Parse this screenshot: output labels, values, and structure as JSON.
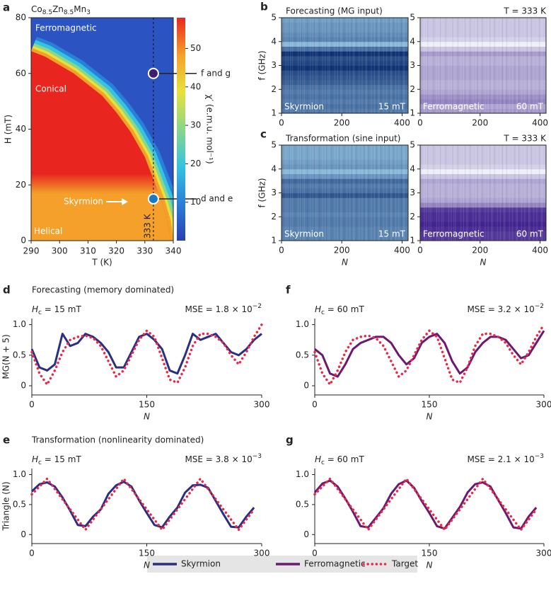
{
  "chart_data": [
    {
      "type": "phase_diagram",
      "panel": "a",
      "title_parts": [
        "Co",
        "8.5",
        "Zn",
        "8.5",
        "Mn",
        "3"
      ],
      "xlabel": "T (K)",
      "ylabel": "H (mT)",
      "xlim": [
        290,
        340
      ],
      "xticks": [
        290,
        300,
        310,
        320,
        330,
        340
      ],
      "ylim": [
        0,
        80
      ],
      "yticks": [
        0,
        20,
        40,
        60,
        80
      ],
      "boundary": {
        "x": [
          290,
          295,
          300,
          305,
          310,
          315,
          320,
          325,
          330,
          333,
          336,
          338,
          339
        ],
        "y": [
          68,
          66,
          63,
          60,
          56,
          52,
          46,
          39,
          30,
          22,
          14,
          7,
          0
        ]
      },
      "regions": [
        "Ferromagnetic",
        "Conical",
        "Skyrmion",
        "Helical"
      ],
      "colors": {
        "ferromagnetic": "#2b54c2",
        "conical": "#e8261f",
        "helical": "#f4a02a"
      },
      "colorbar_label": "χ′ (e.m.u. mol⁻¹)",
      "clim": [
        0,
        58
      ],
      "cticks": [
        10,
        20,
        30,
        40,
        50
      ],
      "colormap": [
        "#2a3fb0",
        "#2a7fd8",
        "#35c3e0",
        "#8ad68a",
        "#e6e23c",
        "#f5a02a",
        "#e8261f"
      ],
      "dashed_line": {
        "value": 333,
        "label": "333 K"
      },
      "markers": [
        {
          "x": 333,
          "y": 60,
          "color": "#3d1f6e",
          "label": "f and g"
        },
        {
          "x": 333,
          "y": 15,
          "color": "#1b78c2",
          "label": "d and e"
        }
      ]
    },
    {
      "type": "spectrogram",
      "panel": "b",
      "title": "Forecasting (MG input)",
      "ylabel": "f (GHz)",
      "xlim": [
        0,
        420
      ],
      "xticks": [
        0,
        200,
        400
      ],
      "ylim": [
        1,
        5
      ],
      "yticks": [
        1,
        2,
        3,
        4,
        5
      ],
      "f": [
        1.1,
        1.3,
        1.5,
        1.7,
        1.9,
        2.1,
        2.3,
        2.5,
        2.7,
        2.9,
        3.1,
        3.3,
        3.5,
        3.7,
        3.9,
        4.1,
        4.3,
        4.5,
        4.7,
        4.9
      ],
      "intensity": [
        0.55,
        0.6,
        0.55,
        0.6,
        0.55,
        0.6,
        0.7,
        0.75,
        0.8,
        0.95,
        0.85,
        0.8,
        0.95,
        0.6,
        0.2,
        0.5,
        0.45,
        0.4,
        0.4,
        0.35
      ],
      "colormap": [
        "#a9dcf4",
        "#0a2a6e"
      ],
      "phase": "Skyrmion",
      "field": "15 mT"
    },
    {
      "type": "spectrogram",
      "annotation": "T = 333 K",
      "xlim": [
        0,
        420
      ],
      "xticks": [
        0,
        200,
        400
      ],
      "ylim": [
        1,
        5
      ],
      "yticks": [
        1,
        2,
        3,
        4,
        5
      ],
      "f": [
        1.1,
        1.3,
        1.5,
        1.7,
        1.9,
        2.1,
        2.3,
        2.5,
        2.7,
        2.9,
        3.1,
        3.3,
        3.5,
        3.7,
        3.9,
        4.1,
        4.3,
        4.5,
        4.7,
        4.9
      ],
      "intensity": [
        0.4,
        0.35,
        0.5,
        0.45,
        0.35,
        0.3,
        0.3,
        0.35,
        0.35,
        0.35,
        0.3,
        0.3,
        0.4,
        0.2,
        0.0,
        0.15,
        0.2,
        0.2,
        0.2,
        0.2
      ],
      "colormap": [
        "#eef0f8",
        "#3a1a8a"
      ],
      "phase": "Ferromagnetic",
      "field": "60 mT"
    },
    {
      "type": "spectrogram",
      "panel": "c",
      "title": "Transformation (sine input)",
      "ylabel": "f (GHz)",
      "xlabel": "N",
      "xlim": [
        0,
        420
      ],
      "xticks": [
        0,
        200,
        400
      ],
      "ylim": [
        1,
        5
      ],
      "yticks": [
        1,
        2,
        3,
        4,
        5
      ],
      "f": [
        1.1,
        1.3,
        1.5,
        1.7,
        1.9,
        2.1,
        2.3,
        2.5,
        2.7,
        2.9,
        3.1,
        3.3,
        3.5,
        3.7,
        3.9,
        4.1,
        4.3,
        4.5,
        4.7,
        4.9
      ],
      "intensity": [
        0.5,
        0.5,
        0.5,
        0.55,
        0.55,
        0.5,
        0.55,
        0.55,
        0.55,
        0.75,
        0.6,
        0.55,
        0.65,
        0.4,
        0.2,
        0.4,
        0.35,
        0.3,
        0.3,
        0.3
      ],
      "colormap": [
        "#a9dcf4",
        "#0a2a6e"
      ],
      "phase": "Skyrmion",
      "field": "15 mT"
    },
    {
      "type": "spectrogram",
      "annotation": "T = 333 K",
      "xlabel": "N",
      "xlim": [
        0,
        420
      ],
      "xticks": [
        0,
        200,
        400
      ],
      "ylim": [
        1,
        5
      ],
      "yticks": [
        1,
        2,
        3,
        4,
        5
      ],
      "f": [
        1.1,
        1.3,
        1.5,
        1.7,
        1.9,
        2.1,
        2.3,
        2.5,
        2.7,
        2.9,
        3.1,
        3.3,
        3.5,
        3.7,
        3.9,
        4.1,
        4.3,
        4.5,
        4.7,
        4.9
      ],
      "intensity": [
        0.85,
        0.85,
        0.9,
        0.95,
        0.9,
        0.9,
        0.85,
        0.5,
        0.35,
        0.3,
        0.3,
        0.3,
        0.35,
        0.2,
        0.0,
        0.15,
        0.2,
        0.2,
        0.2,
        0.2
      ],
      "colormap": [
        "#eef0f8",
        "#3a1a8a"
      ],
      "phase": "Ferromagnetic",
      "field": "60 mT"
    },
    {
      "type": "line",
      "panel": "d",
      "title": "Forecasting (memory dominated)",
      "field_parts": [
        "H",
        "c",
        " = 15 mT"
      ],
      "mse_parts": [
        "MSE = 1.8 × 10",
        "−2"
      ],
      "ylabel": "MG(N + 5)",
      "xlabel": "N",
      "x": [
        0,
        10,
        20,
        30,
        40,
        50,
        60,
        70,
        80,
        90,
        100,
        110,
        120,
        130,
        140,
        150,
        160,
        170,
        180,
        190,
        200,
        210,
        220,
        230,
        240,
        250,
        260,
        270,
        280,
        290,
        300
      ],
      "xlim": [
        0,
        300
      ],
      "xticks": [
        0,
        150,
        300
      ],
      "ylim": [
        -0.15,
        1.1
      ],
      "yticks": [
        0,
        0.5,
        {
          "value": 1,
          "label": "1.0"
        }
      ],
      "series": [
        {
          "name": "Skyrmion",
          "color": "#2b2f80",
          "values": [
            0.6,
            0.3,
            0.25,
            0.35,
            0.85,
            0.65,
            0.7,
            0.85,
            0.8,
            0.7,
            0.55,
            0.3,
            0.3,
            0.55,
            0.8,
            0.85,
            0.75,
            0.6,
            0.25,
            0.2,
            0.5,
            0.85,
            0.75,
            0.8,
            0.85,
            0.7,
            0.55,
            0.5,
            0.6,
            0.75,
            0.85
          ]
        },
        {
          "name": "Target",
          "color": "#e8294a",
          "style": "dotted",
          "values": [
            0.55,
            0.2,
            0.02,
            0.25,
            0.55,
            0.75,
            0.8,
            0.82,
            0.78,
            0.65,
            0.4,
            0.15,
            0.25,
            0.5,
            0.75,
            0.9,
            0.8,
            0.45,
            0.1,
            0.05,
            0.3,
            0.65,
            0.85,
            0.85,
            0.8,
            0.7,
            0.5,
            0.35,
            0.55,
            0.8,
            1.0
          ]
        }
      ]
    },
    {
      "type": "line",
      "panel": "f",
      "field_parts": [
        "H",
        "c",
        " = 60 mT"
      ],
      "mse_parts": [
        "MSE = 3.2 × 10",
        "−2"
      ],
      "xlabel": "N",
      "x": [
        0,
        10,
        20,
        30,
        40,
        50,
        60,
        70,
        80,
        90,
        100,
        110,
        120,
        130,
        140,
        150,
        160,
        170,
        180,
        190,
        200,
        210,
        220,
        230,
        240,
        250,
        260,
        270,
        280,
        290,
        300
      ],
      "xlim": [
        0,
        300
      ],
      "xticks": [
        0,
        150,
        300
      ],
      "ylim": [
        -0.15,
        1.1
      ],
      "yticks": [
        0,
        0.5,
        {
          "value": 1,
          "label": "1.0"
        }
      ],
      "series": [
        {
          "name": "Ferromagnetic",
          "color": "#6b1a6e",
          "values": [
            0.6,
            0.5,
            0.2,
            0.15,
            0.35,
            0.6,
            0.7,
            0.75,
            0.8,
            0.8,
            0.7,
            0.5,
            0.35,
            0.45,
            0.7,
            0.8,
            0.85,
            0.7,
            0.4,
            0.2,
            0.3,
            0.55,
            0.7,
            0.8,
            0.8,
            0.75,
            0.6,
            0.45,
            0.5,
            0.7,
            0.9
          ]
        },
        {
          "name": "Target",
          "color": "#e8294a",
          "style": "dotted",
          "values": [
            0.55,
            0.2,
            0.02,
            0.25,
            0.55,
            0.75,
            0.8,
            0.82,
            0.78,
            0.65,
            0.4,
            0.15,
            0.25,
            0.5,
            0.75,
            0.9,
            0.8,
            0.45,
            0.1,
            0.05,
            0.3,
            0.65,
            0.85,
            0.85,
            0.8,
            0.7,
            0.5,
            0.35,
            0.55,
            0.8,
            1.0
          ]
        }
      ]
    },
    {
      "type": "line",
      "panel": "e",
      "title": "Transformation (nonlinearity dominated)",
      "field_parts": [
        "H",
        "c",
        " = 15 mT"
      ],
      "mse_parts": [
        "MSE = 3.8 × 10",
        "−3"
      ],
      "ylabel": "Triangle (N)",
      "xlabel": "N",
      "x": [
        0,
        10,
        20,
        30,
        40,
        50,
        60,
        70,
        80,
        90,
        100,
        110,
        120,
        130,
        140,
        150,
        160,
        170,
        180,
        190,
        200,
        210,
        220,
        230,
        240,
        250,
        260,
        270,
        280,
        290
      ],
      "xlim": [
        0,
        300
      ],
      "xticks": [
        0,
        150,
        300
      ],
      "ylim": [
        -0.15,
        1.1
      ],
      "yticks": [
        0,
        0.5,
        {
          "value": 1,
          "label": "1.0"
        }
      ],
      "series": [
        {
          "name": "Skyrmion",
          "color": "#2b2f80",
          "values": [
            0.72,
            0.84,
            0.87,
            0.8,
            0.62,
            0.4,
            0.16,
            0.14,
            0.3,
            0.42,
            0.68,
            0.82,
            0.88,
            0.8,
            0.57,
            0.36,
            0.16,
            0.12,
            0.3,
            0.45,
            0.7,
            0.82,
            0.83,
            0.78,
            0.56,
            0.34,
            0.13,
            0.12,
            0.3,
            0.45
          ]
        },
        {
          "name": "Target",
          "color": "#e8294a",
          "style": "dotted",
          "values": [
            0.67,
            0.8,
            0.93,
            0.76,
            0.59,
            0.42,
            0.25,
            0.08,
            0.25,
            0.42,
            0.59,
            0.76,
            0.93,
            0.76,
            0.59,
            0.42,
            0.25,
            0.08,
            0.25,
            0.42,
            0.59,
            0.76,
            0.93,
            0.76,
            0.59,
            0.42,
            0.25,
            0.08,
            0.25,
            0.42
          ]
        }
      ]
    },
    {
      "type": "line",
      "panel": "g",
      "field_parts": [
        "H",
        "c",
        " = 60 mT"
      ],
      "mse_parts": [
        "MSE = 2.1 × 10",
        "−3"
      ],
      "xlabel": "N",
      "x": [
        0,
        10,
        20,
        30,
        40,
        50,
        60,
        70,
        80,
        90,
        100,
        110,
        120,
        130,
        140,
        150,
        160,
        170,
        180,
        190,
        200,
        210,
        220,
        230,
        240,
        250,
        260,
        270,
        280,
        290
      ],
      "xlim": [
        0,
        300
      ],
      "xticks": [
        0,
        150,
        300
      ],
      "ylim": [
        -0.15,
        1.1
      ],
      "yticks": [
        0,
        0.5,
        {
          "value": 1,
          "label": "1.0"
        }
      ],
      "series": [
        {
          "name": "Ferromagnetic",
          "color": "#6b1a6e",
          "values": [
            0.7,
            0.85,
            0.9,
            0.8,
            0.6,
            0.38,
            0.14,
            0.12,
            0.28,
            0.44,
            0.68,
            0.84,
            0.9,
            0.78,
            0.56,
            0.36,
            0.14,
            0.1,
            0.28,
            0.46,
            0.7,
            0.84,
            0.87,
            0.8,
            0.58,
            0.36,
            0.12,
            0.1,
            0.3,
            0.45
          ]
        },
        {
          "name": "Target",
          "color": "#e8294a",
          "style": "dotted",
          "values": [
            0.67,
            0.8,
            0.93,
            0.76,
            0.59,
            0.42,
            0.25,
            0.08,
            0.25,
            0.42,
            0.59,
            0.76,
            0.93,
            0.76,
            0.59,
            0.42,
            0.25,
            0.08,
            0.25,
            0.42,
            0.59,
            0.76,
            0.93,
            0.76,
            0.59,
            0.42,
            0.25,
            0.08,
            0.25,
            0.42
          ]
        }
      ]
    }
  ]
}
